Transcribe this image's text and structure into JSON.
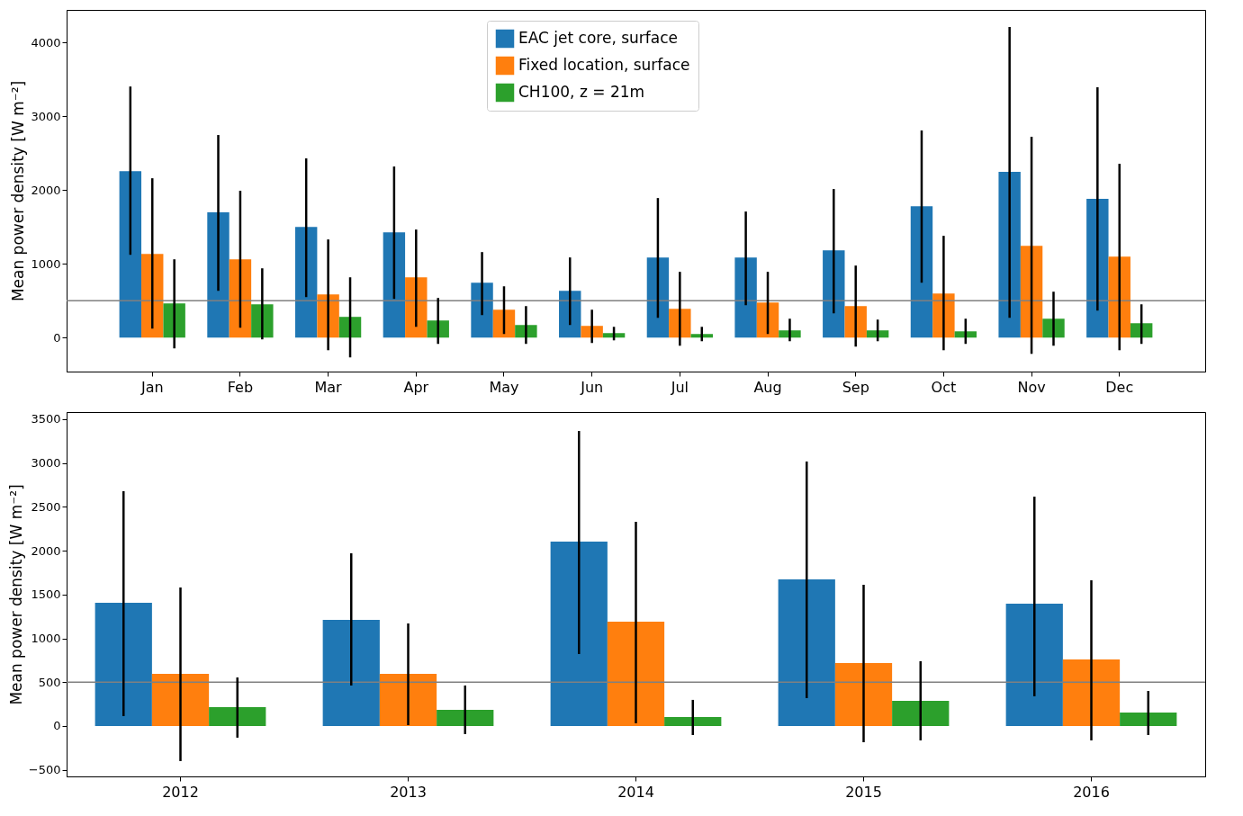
{
  "chart_data": [
    {
      "type": "bar",
      "ylabel": "Mean power density [W m⁻²]",
      "categories": [
        "Jan",
        "Feb",
        "Mar",
        "Apr",
        "May",
        "Jun",
        "Jul",
        "Aug",
        "Sep",
        "Oct",
        "Nov",
        "Dec"
      ],
      "ylim": [
        -460,
        4440
      ],
      "yticks": [
        0,
        1000,
        2000,
        3000,
        4000
      ],
      "grid": false,
      "legend": "top",
      "ref_lines": [
        {
          "axis": "y",
          "value": 500,
          "color": "#808080"
        }
      ],
      "series": [
        {
          "name": "EAC jet core, surface",
          "color": "#1f77b4",
          "values": [
            2256,
            1696,
            1500,
            1427,
            744,
            634,
            1086,
            1086,
            1183,
            1781,
            2245,
            1879
          ],
          "errors": [
            [
              1122,
              3402
            ],
            [
              634,
              2745
            ],
            [
              549,
              2428
            ],
            [
              525,
              2318
            ],
            [
              305,
              1159
            ],
            [
              171,
              1086
            ],
            [
              268,
              1891
            ],
            [
              439,
              1708
            ],
            [
              329,
              2013
            ],
            [
              744,
              2806
            ],
            [
              268,
              4209
            ],
            [
              366,
              3392
            ]
          ]
        },
        {
          "name": "Fixed location, surface",
          "color": "#ff7f0e",
          "values": [
            1134,
            1061,
            586,
            817,
            378,
            159,
            390,
            476,
            427,
            598,
            1244,
            1098
          ],
          "errors": [
            [
              122,
              2159
            ],
            [
              134,
              1989
            ],
            [
              -171,
              1330
            ],
            [
              146,
              1464
            ],
            [
              49,
              695
            ],
            [
              -73,
              378
            ],
            [
              -110,
              891
            ],
            [
              49,
              891
            ],
            [
              -122,
              976
            ],
            [
              -171,
              1379
            ],
            [
              -220,
              2721
            ],
            [
              -171,
              2355
            ]
          ]
        },
        {
          "name": "CH100, z = 21m",
          "color": "#2ca02c",
          "values": [
            464,
            451,
            281,
            232,
            171,
            61,
            49,
            98,
            98,
            85,
            256,
            195
          ],
          "errors": [
            [
              -146,
              1061
            ],
            [
              -24,
              939
            ],
            [
              -268,
              817
            ],
            [
              -85,
              537
            ],
            [
              -85,
              427
            ],
            [
              -37,
              146
            ],
            [
              -49,
              146
            ],
            [
              -49,
              256
            ],
            [
              -49,
              244
            ],
            [
              -85,
              256
            ],
            [
              -110,
              622
            ],
            [
              -85,
              451
            ]
          ]
        }
      ]
    },
    {
      "type": "bar",
      "ylabel": "Mean power density [W m⁻²]",
      "categories": [
        "2012",
        "2013",
        "2014",
        "2015",
        "2016"
      ],
      "ylim": [
        -575,
        3581
      ],
      "yticks": [
        -500,
        0,
        500,
        1000,
        1500,
        2000,
        2500,
        3000,
        3500
      ],
      "grid": false,
      "ref_lines": [
        {
          "axis": "y",
          "value": 500,
          "color": "#808080"
        }
      ],
      "series": [
        {
          "color": "#1f77b4",
          "values": [
            1406,
            1211,
            2103,
            1672,
            1395
          ],
          "errors": [
            [
              113,
              2678
            ],
            [
              462,
              1970
            ],
            [
              821,
              3365
            ],
            [
              318,
              3016
            ],
            [
              339,
              2616
            ]
          ]
        },
        {
          "color": "#ff7f0e",
          "values": [
            595,
            595,
            1190,
            718,
            759
          ],
          "errors": [
            [
              -400,
              1580
            ],
            [
              10,
              1170
            ],
            [
              31,
              2329
            ],
            [
              -185,
              1611
            ],
            [
              -164,
              1662
            ]
          ]
        },
        {
          "color": "#2ca02c",
          "values": [
            215,
            185,
            103,
            287,
            154
          ],
          "errors": [
            [
              -133,
              554
            ],
            [
              -92,
              462
            ],
            [
              -103,
              298
            ],
            [
              -164,
              739
            ],
            [
              -103,
              400
            ]
          ]
        }
      ]
    }
  ]
}
